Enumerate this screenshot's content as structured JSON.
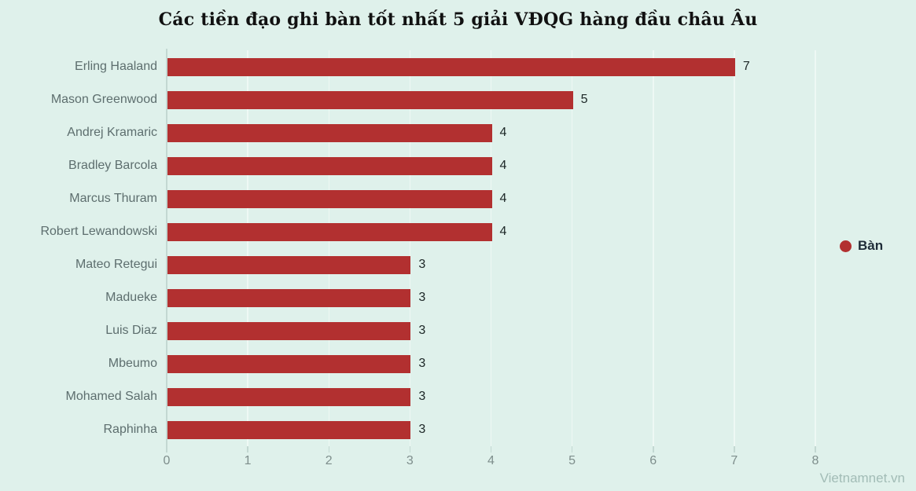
{
  "watermark": "Vietnamnet.vn",
  "colors": {
    "background": "#dff1eb",
    "bar": "#b23030",
    "title_text": "#111111",
    "category_label": "#5d6e6e",
    "axis_label": "#7e8e8c",
    "value_label": "#1c2626",
    "legend_text": "#1e2c38",
    "axis_line": "#c3d8d2",
    "gridline": "#eef8f4",
    "watermark_text": "#a2bcb6"
  },
  "chart_data": {
    "type": "bar",
    "orientation": "horizontal",
    "title": "Các tiền đạo ghi bàn tốt nhất 5 giải VĐQG hàng đầu châu Âu",
    "categories": [
      "Erling Haaland",
      "Mason Greenwood",
      "Andrej Kramaric",
      "Bradley Barcola",
      "Marcus Thuram",
      "Robert Lewandowski",
      "Mateo Retegui",
      "Madueke",
      "Luis Diaz",
      "Mbeumo",
      "Mohamed Salah",
      "Raphinha"
    ],
    "series": [
      {
        "name": "Bàn",
        "values": [
          7,
          5,
          4,
          4,
          4,
          4,
          3,
          3,
          3,
          3,
          3,
          3
        ]
      }
    ],
    "value_labels": true,
    "xlabel": "",
    "ylabel": "",
    "xlim": [
      0,
      8
    ],
    "x_ticks": [
      0,
      1,
      2,
      3,
      4,
      5,
      6,
      7,
      8
    ],
    "grid": "vertical",
    "legend_position": "right"
  }
}
